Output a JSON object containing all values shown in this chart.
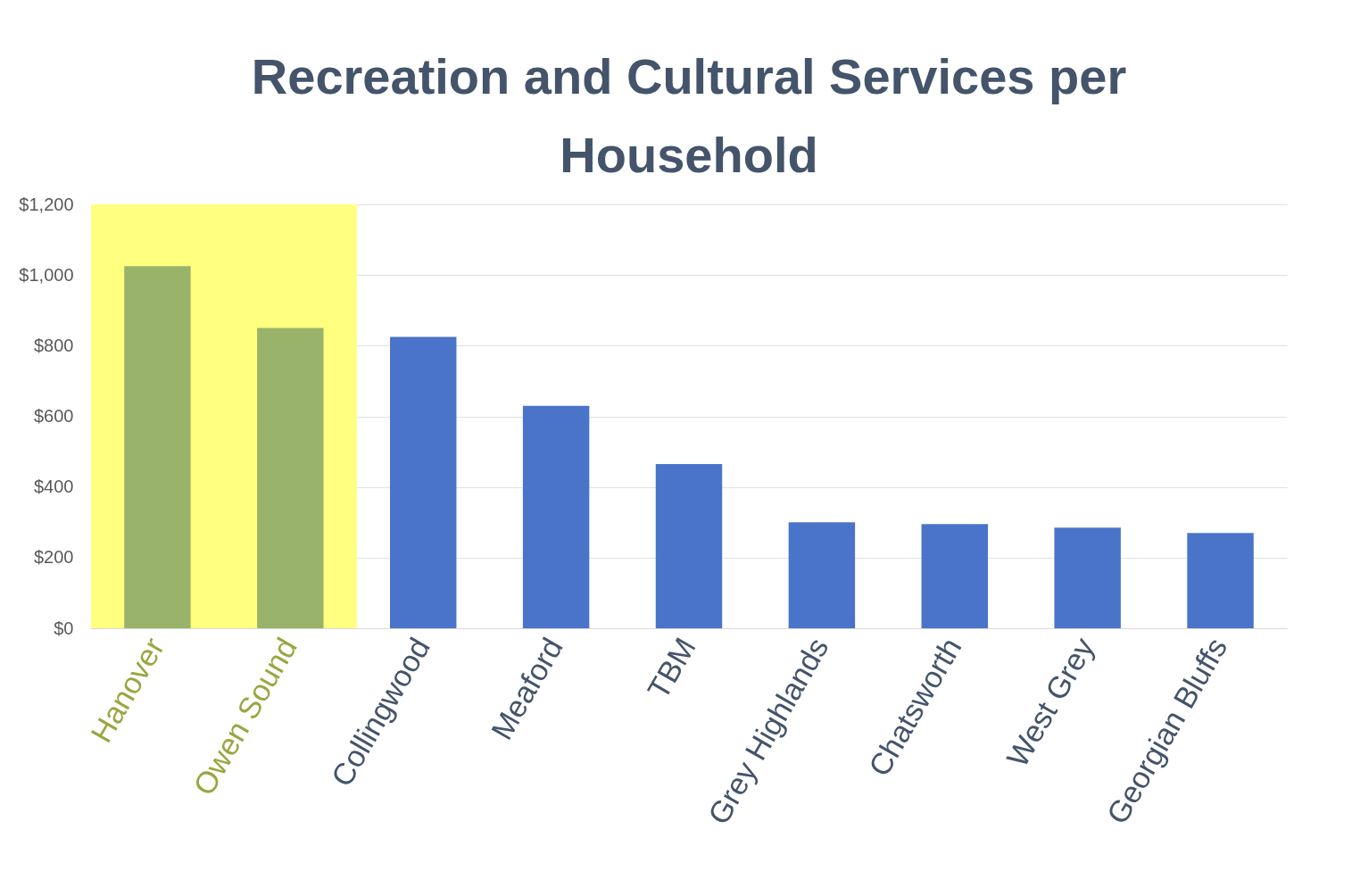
{
  "chart_data": {
    "type": "bar",
    "title": "Recreation and Cultural Services per Household",
    "categories": [
      "Hanover",
      "Owen Sound",
      "Collingwood",
      "Meaford",
      "TBM",
      "Grey Highlands",
      "Chatsworth",
      "West Grey",
      "Georgian Bluffs"
    ],
    "values": [
      1025,
      850,
      825,
      630,
      465,
      300,
      295,
      285,
      270
    ],
    "colors": [
      "#9ab36a",
      "#9ab36a",
      "#4a74c9",
      "#4a74c9",
      "#4a74c9",
      "#4a74c9",
      "#4a74c9",
      "#4a74c9",
      "#4a74c9"
    ],
    "ylim": [
      0,
      1200
    ],
    "yticks": [
      {
        "value": 0,
        "label": "$0"
      },
      {
        "value": 200,
        "label": "$200"
      },
      {
        "value": 400,
        "label": "$400"
      },
      {
        "value": 600,
        "label": "$600"
      },
      {
        "value": 800,
        "label": "$800"
      },
      {
        "value": 1000,
        "label": "$1,000"
      },
      {
        "value": 1200,
        "label": "$1,200"
      }
    ],
    "grid": "y",
    "bands": [
      {
        "axis": "x",
        "from": "Hanover",
        "to": "Owen Sound",
        "color": "#ffff80"
      }
    ]
  }
}
